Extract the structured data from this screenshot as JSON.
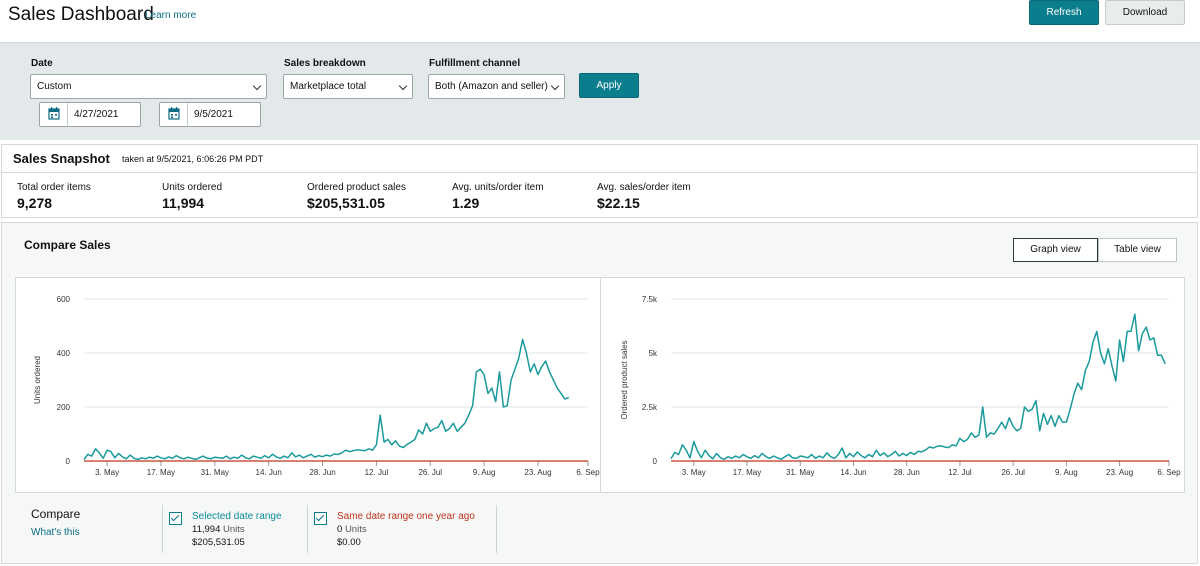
{
  "header": {
    "title": "Sales Dashboard",
    "learn_more": "Learn more",
    "refresh_label": "Refresh",
    "download_label": "Download"
  },
  "filters": {
    "date_label": "Date",
    "date_value": "Custom",
    "start_date": "4/27/2021",
    "end_date": "9/5/2021",
    "breakdown_label": "Sales breakdown",
    "breakdown_value": "Marketplace total",
    "channel_label": "Fulfillment channel",
    "channel_value": "Both (Amazon and seller)",
    "apply_label": "Apply"
  },
  "snapshot": {
    "title": "Sales Snapshot",
    "taken_at": "taken at 9/5/2021, 6:06:26 PM PDT",
    "metrics": [
      {
        "label": "Total order items",
        "value": "9,278"
      },
      {
        "label": "Units ordered",
        "value": "11,994"
      },
      {
        "label": "Ordered product sales",
        "value": "$205,531.05"
      },
      {
        "label": "Avg. units/order item",
        "value": "1.29"
      },
      {
        "label": "Avg. sales/order item",
        "value": "$22.15"
      }
    ]
  },
  "compare": {
    "title": "Compare Sales",
    "graph_view": "Graph view",
    "table_view": "Table view",
    "compare_label": "Compare",
    "whats_this": "What's this",
    "legend": [
      {
        "name": "Selected date range",
        "units_value": "11,994",
        "units_label": "Units",
        "sales": "$205,531.05",
        "color": "#0a8c95"
      },
      {
        "name": "Same date range one year ago",
        "units_value": "0",
        "units_label": "Units",
        "sales": "$0.00",
        "color": "#c0341d"
      }
    ]
  },
  "colors": {
    "accent": "#0a7e8c",
    "series_current": "#1a9a9c",
    "series_previous": "#c0341d"
  },
  "chart_data": [
    {
      "type": "line",
      "ylabel": "Units ordered",
      "ylim": [
        0,
        600
      ],
      "yticks": [
        0,
        200,
        400,
        600
      ],
      "ytick_labels": [
        "0",
        "200",
        "400",
        "600"
      ],
      "xlim": [
        0,
        131
      ],
      "xticks": [
        {
          "day": 6,
          "label": "3. May"
        },
        {
          "day": 20,
          "label": "17. May"
        },
        {
          "day": 34,
          "label": "31. May"
        },
        {
          "day": 48,
          "label": "14. Jun"
        },
        {
          "day": 62,
          "label": "28. Jun"
        },
        {
          "day": 76,
          "label": "12. Jul"
        },
        {
          "day": 90,
          "label": "26. Jul"
        },
        {
          "day": 104,
          "label": "9. Aug"
        },
        {
          "day": 118,
          "label": "23. Aug"
        },
        {
          "day": 131,
          "label": "6. Sep"
        }
      ],
      "series": [
        {
          "values": [
            5,
            25,
            18,
            45,
            30,
            10,
            40,
            35,
            12,
            28,
            15,
            8,
            22,
            10,
            6,
            12,
            8,
            14,
            10,
            18,
            12,
            8,
            15,
            10,
            20,
            12,
            8,
            14,
            10,
            6,
            12,
            18,
            10,
            8,
            14,
            12,
            10,
            18,
            8,
            14,
            10,
            22,
            12,
            8,
            18,
            14,
            10,
            20,
            12,
            25,
            15,
            10,
            18,
            12,
            30,
            15,
            22,
            12,
            18,
            25,
            14,
            20,
            16,
            22,
            18,
            26,
            24,
            30,
            40,
            35,
            38,
            42,
            40,
            38,
            45,
            40,
            60,
            170,
            70,
            80,
            60,
            75,
            55,
            50,
            62,
            70,
            80,
            115,
            100,
            140,
            110,
            120,
            125,
            150,
            110,
            120,
            140,
            110,
            125,
            140,
            170,
            205,
            330,
            340,
            320,
            250,
            270,
            220,
            330,
            200,
            205,
            300,
            340,
            380,
            450,
            400,
            330,
            360,
            320,
            350,
            370,
            330,
            300,
            270,
            250,
            230,
            235
          ]
        },
        {
          "values": [
            0,
            0
          ]
        }
      ]
    },
    {
      "type": "line",
      "ylabel": "Ordered product sales",
      "ylim": [
        0,
        7500
      ],
      "yticks": [
        0,
        2500,
        5000,
        7500
      ],
      "ytick_labels": [
        "0",
        "2.5k",
        "5k",
        "7.5k"
      ],
      "xlim": [
        0,
        131
      ],
      "xticks": [
        {
          "day": 6,
          "label": "3. May"
        },
        {
          "day": 20,
          "label": "17. May"
        },
        {
          "day": 34,
          "label": "31. May"
        },
        {
          "day": 48,
          "label": "14. Jun"
        },
        {
          "day": 62,
          "label": "28. Jun"
        },
        {
          "day": 76,
          "label": "12. Jul"
        },
        {
          "day": 90,
          "label": "26. Jul"
        },
        {
          "day": 104,
          "label": "9. Aug"
        },
        {
          "day": 118,
          "label": "23. Aug"
        },
        {
          "day": 131,
          "label": "6. Sep"
        }
      ],
      "series": [
        {
          "values": [
            100,
            400,
            300,
            750,
            500,
            150,
            900,
            450,
            150,
            500,
            250,
            100,
            350,
            150,
            80,
            200,
            120,
            230,
            150,
            300,
            200,
            120,
            250,
            150,
            350,
            200,
            120,
            230,
            150,
            80,
            200,
            300,
            150,
            120,
            230,
            200,
            150,
            300,
            120,
            230,
            150,
            380,
            200,
            120,
            300,
            600,
            150,
            350,
            200,
            420,
            250,
            150,
            300,
            200,
            500,
            250,
            380,
            200,
            300,
            450,
            230,
            350,
            250,
            400,
            300,
            450,
            420,
            520,
            650,
            600,
            680,
            700,
            650,
            620,
            750,
            700,
            1050,
            900,
            1000,
            1300,
            1100,
            1200,
            2500,
            1100,
            1300,
            1250,
            1500,
            1800,
            1500,
            2000,
            1600,
            1400,
            1500,
            2500,
            2300,
            2400,
            2800,
            1400,
            2200,
            1700,
            2100,
            1600,
            2100,
            1800,
            1800,
            2400,
            3100,
            3600,
            3300,
            4200,
            4600,
            5500,
            6000,
            5000,
            4500,
            5200,
            4400,
            3700,
            5600,
            4600,
            6000,
            6000,
            6800,
            5100,
            5900,
            6200,
            5600,
            5700,
            4900,
            4900,
            4500
          ]
        },
        {
          "values": [
            0,
            0
          ]
        }
      ]
    }
  ]
}
